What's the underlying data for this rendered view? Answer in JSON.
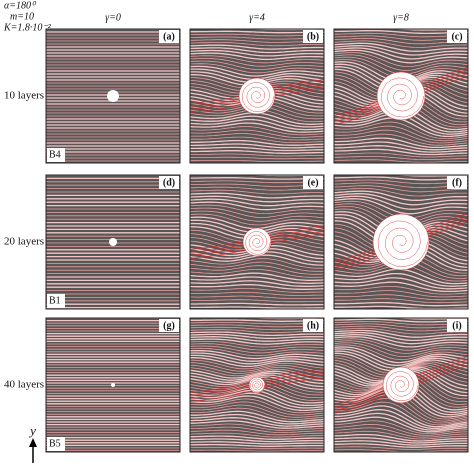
{
  "header": {
    "alpha": "α=180⁰",
    "m": "m=10",
    "K": "K=1.8·10⁻²"
  },
  "columns": [
    "γ=0",
    "γ=4",
    "γ=8"
  ],
  "rows": [
    {
      "label": "10 layers",
      "tag": "B4",
      "panels": [
        "(a)",
        "(b)",
        "(c)"
      ]
    },
    {
      "label": "20 layers",
      "tag": "B1",
      "panels": [
        "(d)",
        "(e)",
        "(f)"
      ]
    },
    {
      "label": "40 layers",
      "tag": "B5",
      "panels": [
        "(g)",
        "(h)",
        "(i)"
      ]
    }
  ],
  "axis_label": "y"
}
